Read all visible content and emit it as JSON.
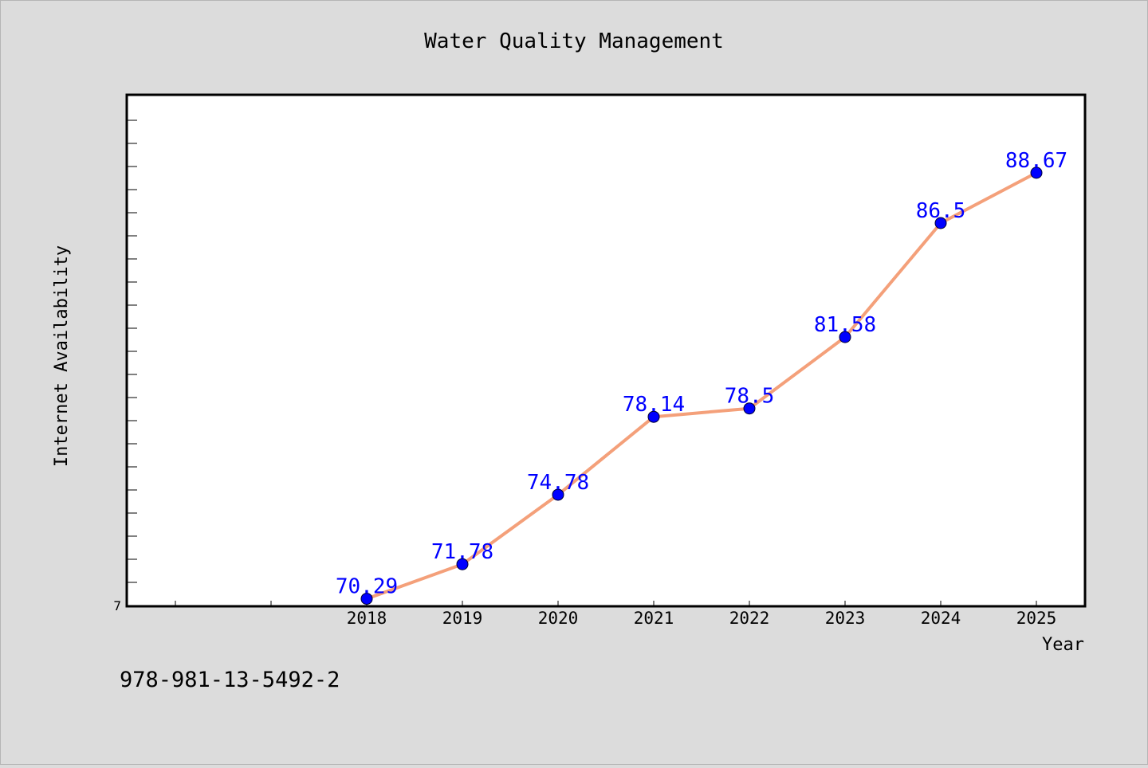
{
  "chart_data": {
    "type": "line",
    "title": "Water Quality Management",
    "xlabel": "Year",
    "ylabel": "Internet Availability",
    "categories": [
      "2018",
      "2019",
      "2020",
      "2021",
      "2022",
      "2023",
      "2024",
      "2025"
    ],
    "series": [
      {
        "values": [
          70.29,
          71.78,
          74.78,
          78.14,
          78.5,
          81.58,
          86.5,
          88.67
        ]
      }
    ],
    "data_labels": [
      "70.29",
      "71.78",
      "74.78",
      "78.14",
      "78.5",
      "81.58",
      "86.5",
      "88.67"
    ],
    "y_tick_label": "7",
    "ylim": [
      70,
      92
    ],
    "grid": false,
    "annotation": "978-981-13-5492-2",
    "colors": {
      "background": "#dcdcdc",
      "plot_background": "#ffffff",
      "line": "#f4a07a",
      "marker": "#0000ff",
      "data_label": "#0000ff",
      "axis": "#000000"
    }
  }
}
